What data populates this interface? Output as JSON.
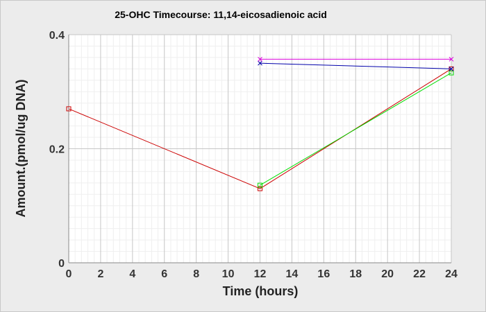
{
  "chart_data": {
    "type": "line",
    "title": "25-OHC Timecourse: 11,14-eicosadienoic acid",
    "xlabel": "Time (hours)",
    "ylabel": "Amount.(pmol/ug DNA)",
    "xlim": [
      0,
      24
    ],
    "ylim": [
      0,
      0.4
    ],
    "xticks": [
      0,
      2,
      4,
      6,
      8,
      10,
      12,
      14,
      16,
      18,
      20,
      22,
      24
    ],
    "yticks": [
      0,
      0.2,
      0.4
    ],
    "xtick_labels": [
      "0",
      "2",
      "4",
      "6",
      "8",
      "10",
      "12",
      "14",
      "16",
      "18",
      "20",
      "22",
      "24"
    ],
    "ytick_labels": [
      "0",
      "0.2",
      "0.4"
    ],
    "grid": true,
    "series": [
      {
        "color": "#cc0000",
        "marker": "square",
        "x": [
          0,
          12,
          24
        ],
        "y": [
          0.27,
          0.13,
          0.34
        ]
      },
      {
        "color": "#00dd00",
        "marker": "square",
        "x": [
          12,
          24
        ],
        "y": [
          0.136,
          0.333
        ]
      },
      {
        "color": "#0000aa",
        "marker": "x",
        "x": [
          12,
          24
        ],
        "y": [
          0.35,
          0.34
        ]
      },
      {
        "color": "#dd00dd",
        "marker": "x",
        "x": [
          12,
          24
        ],
        "y": [
          0.357,
          0.357
        ]
      }
    ]
  }
}
